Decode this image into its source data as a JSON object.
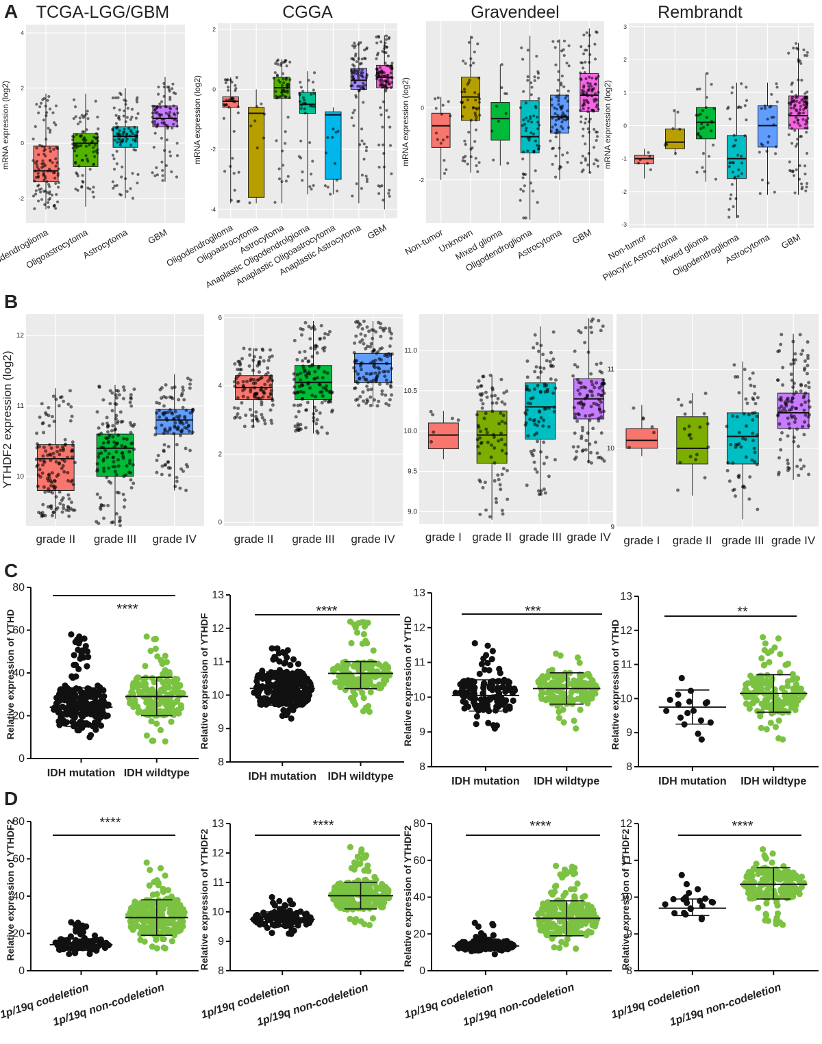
{
  "colors": {
    "panel_bg": "#ebebeb",
    "grid": "#ffffff",
    "red": "#f8766d",
    "olive": "#b79f00",
    "green": "#53b400",
    "teal": "#00c094",
    "cyan": "#00b6eb",
    "blue": "#619cff",
    "purple": "#c77cff",
    "dot_dark": "#111111",
    "dot_green": "#7cc242"
  },
  "labels": {
    "A": "A",
    "B": "B",
    "C": "C",
    "D": "D"
  },
  "chart_data": [
    {
      "type": "box",
      "panel": "A",
      "title": "TCGA-LGG/GBM",
      "ylabel": "mRNA expression (log2)",
      "ylim": [
        -2.9,
        4.3
      ],
      "yticks": [
        -2,
        0,
        2,
        4
      ],
      "grid": true,
      "categories": [
        "Oligodendroglioma",
        "Oligoastrocytoma",
        "Astrocytoma",
        "GBM"
      ],
      "colors": [
        "#f8766d",
        "#53b400",
        "#00bfc4",
        "#c77cff"
      ],
      "boxes": [
        {
          "q1": -1.4,
          "median": -1.0,
          "q3": -0.1,
          "wlo": -2.4,
          "whi": 1.8,
          "n": 110
        },
        {
          "q1": -0.85,
          "median": 0.0,
          "q3": 0.35,
          "wlo": -2.3,
          "whi": 1.8,
          "n": 85
        },
        {
          "q1": -0.15,
          "median": 0.25,
          "q3": 0.6,
          "wlo": -2.0,
          "whi": 2.0,
          "n": 95
        },
        {
          "q1": 0.6,
          "median": 0.9,
          "q3": 1.35,
          "wlo": -1.4,
          "whi": 2.4,
          "n": 90
        }
      ]
    },
    {
      "type": "box",
      "panel": "A",
      "title": "CGGA",
      "ylabel": "mRNA expression (log2)",
      "ylim": [
        -4.3,
        2.2
      ],
      "yticks": [
        -4,
        -2,
        0,
        2
      ],
      "grid": true,
      "categories": [
        "Oligodendroglioma",
        "Oligoastrocytoma",
        "Astrocytoma",
        "Anaplastic Oligodendrolgioma",
        "Anaplastic Oligoastrocytoma",
        "Anaplastic Astrocytoma",
        "GBM"
      ],
      "colors": [
        "#f8766d",
        "#b79f00",
        "#53b400",
        "#00c094",
        "#00b6eb",
        "#a58aff",
        "#fb61d7"
      ],
      "boxes": [
        {
          "q1": -0.6,
          "median": -0.4,
          "q3": -0.25,
          "wlo": -3.8,
          "whi": 0.4,
          "n": 40
        },
        {
          "q1": -3.6,
          "median": -0.8,
          "q3": -0.6,
          "wlo": -3.8,
          "whi": 0.0,
          "n": 8
        },
        {
          "q1": -0.3,
          "median": 0.05,
          "q3": 0.4,
          "wlo": -3.8,
          "whi": 1.0,
          "n": 60
        },
        {
          "q1": -0.8,
          "median": -0.5,
          "q3": -0.1,
          "wlo": -3.5,
          "whi": 0.6,
          "n": 35
        },
        {
          "q1": -3.0,
          "median": -0.85,
          "q3": -0.75,
          "wlo": -3.5,
          "whi": -0.6,
          "n": 12
        },
        {
          "q1": 0.0,
          "median": 0.3,
          "q3": 0.7,
          "wlo": -3.8,
          "whi": 1.6,
          "n": 85
        },
        {
          "q1": 0.05,
          "median": 0.4,
          "q3": 0.8,
          "wlo": -4.0,
          "whi": 1.8,
          "n": 110
        }
      ]
    },
    {
      "type": "box",
      "panel": "A",
      "title": "Gravendeel",
      "ylabel": "mRNA expression (log2)",
      "ylim": [
        -3.2,
        2.4
      ],
      "yticks": [
        -2,
        0
      ],
      "grid": true,
      "categories": [
        "Non-tumor",
        "Unknown",
        "Mixed glioma",
        "Oligodendroglioma",
        "Astrocytoma",
        "GBM"
      ],
      "colors": [
        "#f8766d",
        "#b79f00",
        "#00ba38",
        "#00bfc4",
        "#619cff",
        "#f564e3"
      ],
      "boxes": [
        {
          "q1": -1.1,
          "median": -0.5,
          "q3": -0.15,
          "wlo": -2.0,
          "whi": 0.3,
          "n": 15
        },
        {
          "q1": -0.35,
          "median": 0.3,
          "q3": 0.85,
          "wlo": -1.8,
          "whi": 2.0,
          "n": 55
        },
        {
          "q1": -0.9,
          "median": -0.3,
          "q3": 0.15,
          "wlo": -1.6,
          "whi": 1.2,
          "n": 10
        },
        {
          "q1": -1.25,
          "median": -0.8,
          "q3": 0.2,
          "wlo": -3.1,
          "whi": 2.0,
          "n": 65
        },
        {
          "q1": -0.7,
          "median": -0.25,
          "q3": 0.35,
          "wlo": -2.0,
          "whi": 1.9,
          "n": 80
        },
        {
          "q1": -0.1,
          "median": 0.35,
          "q3": 0.95,
          "wlo": -1.8,
          "whi": 2.2,
          "n": 110
        }
      ]
    },
    {
      "type": "box",
      "panel": "A",
      "title": "Rembrandt",
      "ylabel": "mRNA expression (log2)",
      "ylim": [
        -3.1,
        3.1
      ],
      "yticks": [
        -3,
        -2,
        -1,
        0,
        1,
        2,
        3
      ],
      "grid": true,
      "categories": [
        "Non-tumor",
        "Pilocytic Astrocytoma",
        "Mixed glioma",
        "Oligodendroglioma",
        "Astrocytoma",
        "GBM"
      ],
      "colors": [
        "#f8766d",
        "#b79f00",
        "#00ba38",
        "#00bfc4",
        "#619cff",
        "#f564e3"
      ],
      "boxes": [
        {
          "q1": -1.15,
          "median": -1.0,
          "q3": -0.9,
          "wlo": -1.6,
          "whi": -0.7,
          "n": 6
        },
        {
          "q1": -0.7,
          "median": -0.5,
          "q3": -0.1,
          "wlo": -0.9,
          "whi": 0.5,
          "n": 8
        },
        {
          "q1": -0.4,
          "median": 0.1,
          "q3": 0.55,
          "wlo": -1.7,
          "whi": 1.6,
          "n": 30
        },
        {
          "q1": -1.6,
          "median": -1.0,
          "q3": -0.3,
          "wlo": -2.8,
          "whi": 1.3,
          "n": 40
        },
        {
          "q1": -0.65,
          "median": 0.0,
          "q3": 0.6,
          "wlo": -2.1,
          "whi": 1.3,
          "n": 25
        },
        {
          "q1": -0.1,
          "median": 0.3,
          "q3": 0.9,
          "wlo": -2.1,
          "whi": 2.5,
          "n": 110
        }
      ]
    },
    {
      "type": "box",
      "panel": "B",
      "title": "",
      "ylabel": "YTHDF2 expression (log2)",
      "ylim": [
        9.3,
        12.3
      ],
      "yticks": [
        10,
        11,
        12
      ],
      "grid": true,
      "categories": [
        "grade II",
        "grade III",
        "grade IV"
      ],
      "colors": [
        "#f8766d",
        "#00ba38",
        "#619cff"
      ],
      "boxes": [
        {
          "q1": 9.8,
          "median": 10.25,
          "q3": 10.45,
          "wlo": 9.4,
          "whi": 11.25,
          "n": 140
        },
        {
          "q1": 10.0,
          "median": 10.4,
          "q3": 10.6,
          "wlo": 9.3,
          "whi": 11.3,
          "n": 140
        },
        {
          "q1": 10.6,
          "median": 10.8,
          "q3": 10.95,
          "wlo": 9.8,
          "whi": 11.45,
          "n": 110
        }
      ]
    },
    {
      "type": "box",
      "panel": "B",
      "title": "",
      "ylabel": "",
      "ylim": [
        -0.1,
        6.1
      ],
      "yticks": [
        0,
        2,
        4,
        6
      ],
      "grid": true,
      "categories": [
        "grade II",
        "grade III",
        "grade IV"
      ],
      "colors": [
        "#f8766d",
        "#00ba38",
        "#619cff"
      ],
      "boxes": [
        {
          "q1": 3.6,
          "median": 3.95,
          "q3": 4.3,
          "wlo": 2.8,
          "whi": 5.1,
          "n": 120
        },
        {
          "q1": 3.6,
          "median": 4.1,
          "q3": 4.6,
          "wlo": 2.6,
          "whi": 5.9,
          "n": 130
        },
        {
          "q1": 4.1,
          "median": 4.65,
          "q3": 4.95,
          "wlo": 3.4,
          "whi": 5.9,
          "n": 130
        }
      ]
    },
    {
      "type": "box",
      "panel": "B",
      "title": "",
      "ylabel": "",
      "ylim": [
        8.85,
        11.45
      ],
      "yticks": [
        9.0,
        9.5,
        10.0,
        10.5,
        11.0
      ],
      "tick_format": "fixed1",
      "grid": true,
      "categories": [
        "grade I",
        "grade II",
        "grade III",
        "grade IV"
      ],
      "colors": [
        "#f8766d",
        "#7cae00",
        "#00bfc4",
        "#c77cff"
      ],
      "boxes": [
        {
          "q1": 9.78,
          "median": 9.95,
          "q3": 10.1,
          "wlo": 9.65,
          "whi": 10.25,
          "n": 6
        },
        {
          "q1": 9.6,
          "median": 9.95,
          "q3": 10.25,
          "wlo": 8.9,
          "whi": 10.7,
          "n": 80
        },
        {
          "q1": 9.9,
          "median": 10.3,
          "q3": 10.6,
          "wlo": 9.2,
          "whi": 11.3,
          "n": 90
        },
        {
          "q1": 10.15,
          "median": 10.4,
          "q3": 10.65,
          "wlo": 9.6,
          "whi": 11.4,
          "n": 110
        }
      ]
    },
    {
      "type": "box",
      "panel": "B",
      "title": "",
      "ylabel": "",
      "ylim": [
        9.0,
        11.7
      ],
      "yticks": [
        9,
        10,
        11
      ],
      "grid": true,
      "categories": [
        "grade I",
        "grade II",
        "grade III",
        "grade IV"
      ],
      "colors": [
        "#f8766d",
        "#7cae00",
        "#00bfc4",
        "#c77cff"
      ],
      "boxes": [
        {
          "q1": 10.0,
          "median": 10.1,
          "q3": 10.25,
          "wlo": 9.9,
          "whi": 10.55,
          "n": 6
        },
        {
          "q1": 9.8,
          "median": 10.0,
          "q3": 10.4,
          "wlo": 9.4,
          "whi": 10.7,
          "n": 20
        },
        {
          "q1": 9.8,
          "median": 10.15,
          "q3": 10.45,
          "wlo": 9.1,
          "whi": 11.1,
          "n": 60
        },
        {
          "q1": 10.25,
          "median": 10.45,
          "q3": 10.7,
          "wlo": 9.6,
          "whi": 11.45,
          "n": 110
        }
      ]
    },
    {
      "type": "scatter",
      "panel": "C",
      "ylabel": "Relative expression of YTHD",
      "ylim": [
        0,
        80
      ],
      "yticks": [
        0,
        20,
        40,
        60,
        80
      ],
      "italic_x": false,
      "significance": "****",
      "groups": [
        {
          "label": "IDH mutation",
          "color": "#111111",
          "mean": 24,
          "sd_range": [
            15,
            33
          ],
          "lo": 10,
          "hi": 58,
          "n": 220
        },
        {
          "label": "IDH wildtype",
          "color": "#7cc242",
          "mean": 29,
          "sd_range": [
            20,
            38
          ],
          "lo": 8,
          "hi": 57,
          "n": 160
        }
      ]
    },
    {
      "type": "scatter",
      "panel": "C",
      "ylabel": "Relative expression of YTHDF",
      "ylim": [
        8,
        13
      ],
      "yticks": [
        8,
        9,
        10,
        11,
        12,
        13
      ],
      "italic_x": false,
      "significance": "****",
      "groups": [
        {
          "label": "IDH mutation",
          "color": "#111111",
          "mean": 10.2,
          "sd_range": [
            9.7,
            10.7
          ],
          "lo": 9.3,
          "hi": 11.4,
          "n": 240
        },
        {
          "label": "IDH wildtype",
          "color": "#7cc242",
          "mean": 10.65,
          "sd_range": [
            10.2,
            11.0
          ],
          "lo": 9.5,
          "hi": 12.2,
          "n": 170
        }
      ]
    },
    {
      "type": "scatter",
      "panel": "C",
      "ylabel": "Relative expression of YTHD",
      "ylim": [
        8,
        13
      ],
      "yticks": [
        8,
        9,
        10,
        11,
        12,
        13
      ],
      "italic_x": false,
      "significance": "***",
      "groups": [
        {
          "label": "IDH mutation",
          "color": "#111111",
          "mean": 10.05,
          "sd_range": [
            9.6,
            10.5
          ],
          "lo": 9.1,
          "hi": 11.55,
          "n": 130
        },
        {
          "label": "IDH wildtype",
          "color": "#7cc242",
          "mean": 10.25,
          "sd_range": [
            9.8,
            10.7
          ],
          "lo": 9.1,
          "hi": 11.25,
          "n": 150
        }
      ]
    },
    {
      "type": "scatter",
      "panel": "C",
      "ylabel": "Relative expression of YTHD",
      "ylim": [
        8,
        13
      ],
      "yticks": [
        8,
        9,
        10,
        11,
        12,
        13
      ],
      "italic_x": false,
      "significance": "**",
      "groups": [
        {
          "label": "IDH mutation",
          "color": "#111111",
          "mean": 9.75,
          "sd_range": [
            9.25,
            10.25
          ],
          "lo": 8.8,
          "hi": 10.6,
          "n": 15
        },
        {
          "label": "IDH wildtype",
          "color": "#7cc242",
          "mean": 10.15,
          "sd_range": [
            9.6,
            10.7
          ],
          "lo": 8.8,
          "hi": 11.8,
          "n": 150
        }
      ]
    },
    {
      "type": "scatter",
      "panel": "D",
      "ylabel": "Relative expression of YTHDF2",
      "ylim": [
        0,
        80
      ],
      "yticks": [
        0,
        20,
        40,
        60,
        80
      ],
      "italic_x": true,
      "significance": "****",
      "groups": [
        {
          "label": "1p/19q codeletion",
          "color": "#111111",
          "mean": 14,
          "sd_range": [
            11,
            17
          ],
          "lo": 9,
          "hi": 26,
          "n": 110
        },
        {
          "label": "1p/19q non-codeletion",
          "color": "#7cc242",
          "mean": 28.5,
          "sd_range": [
            19,
            38
          ],
          "lo": 12,
          "hi": 58,
          "n": 220
        }
      ]
    },
    {
      "type": "scatter",
      "panel": "D",
      "ylabel": "Relative expression of YTHDF2",
      "ylim": [
        8,
        13
      ],
      "yticks": [
        8,
        9,
        10,
        11,
        12,
        13
      ],
      "italic_x": true,
      "significance": "****",
      "groups": [
        {
          "label": "1p/19q codeletion",
          "color": "#111111",
          "mean": 9.75,
          "sd_range": [
            9.5,
            10.0
          ],
          "lo": 9.25,
          "hi": 10.5,
          "n": 110
        },
        {
          "label": "1p/19q non-codeletion",
          "color": "#7cc242",
          "mean": 10.55,
          "sd_range": [
            10.1,
            11.0
          ],
          "lo": 9.55,
          "hi": 12.2,
          "n": 220
        }
      ]
    },
    {
      "type": "scatter",
      "panel": "D",
      "ylabel": "Relative expression of YTHDF2",
      "ylim": [
        0,
        80
      ],
      "yticks": [
        0,
        20,
        40,
        60,
        80
      ],
      "italic_x": true,
      "significance": "****",
      "groups": [
        {
          "label": "1p/19q codeletion",
          "color": "#111111",
          "mean": 13.5,
          "sd_range": [
            11,
            16
          ],
          "lo": 9,
          "hi": 26,
          "n": 110
        },
        {
          "label": "1p/19q non-codeletion",
          "color": "#7cc242",
          "mean": 28.5,
          "sd_range": [
            19,
            38
          ],
          "lo": 12,
          "hi": 57,
          "n": 220
        }
      ]
    },
    {
      "type": "scatter",
      "panel": "D",
      "ylabel": "Relative expression of YTHDF2",
      "ylim": [
        8,
        12
      ],
      "yticks": [
        8,
        9,
        10,
        11,
        12
      ],
      "italic_x": true,
      "significance": "****",
      "groups": [
        {
          "label": "1p/19q codeletion",
          "color": "#111111",
          "mean": 9.7,
          "sd_range": [
            9.5,
            9.95
          ],
          "lo": 9.4,
          "hi": 10.6,
          "n": 20
        },
        {
          "label": "1p/19q non-codeletion",
          "color": "#7cc242",
          "mean": 10.35,
          "sd_range": [
            9.95,
            10.8
          ],
          "lo": 9.25,
          "hi": 11.3,
          "n": 160
        }
      ]
    }
  ]
}
